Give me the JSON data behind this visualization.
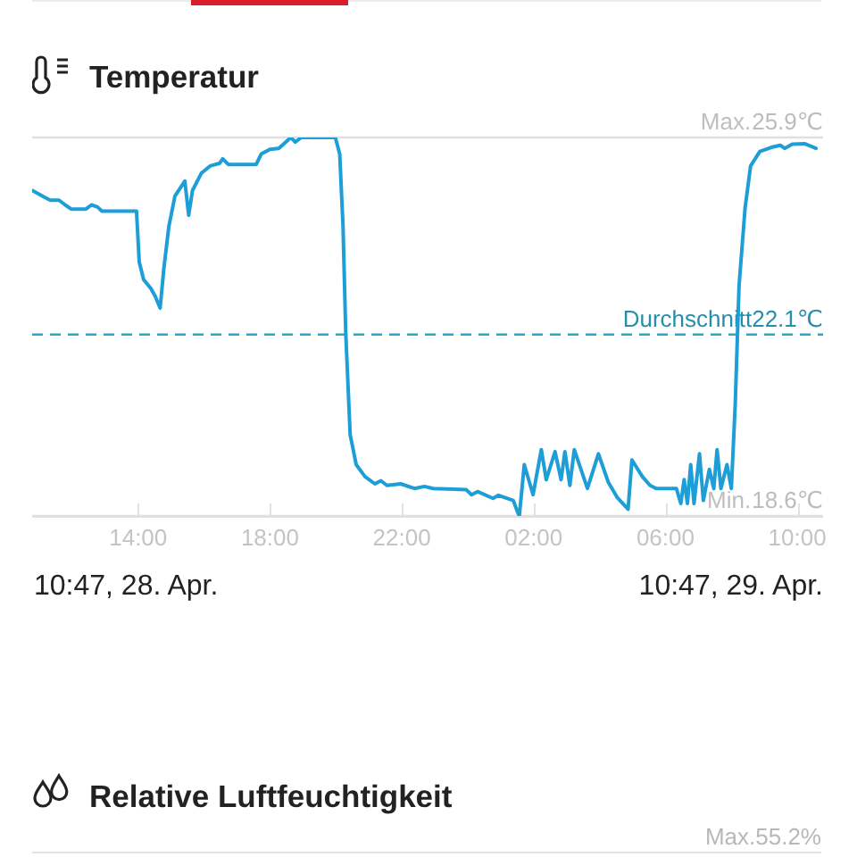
{
  "chart_data": [
    {
      "type": "line",
      "title": "Temperatur",
      "x": [
        "--04-28T10:47",
        "--04-28T11:09",
        "--04-28T11:20",
        "--04-28T11:36",
        "--04-28T11:47",
        "--04-28T11:58",
        "--04-28T12:25",
        "--04-28T12:35",
        "--04-28T12:46",
        "--04-28T12:54",
        "--04-28T13:57",
        "--04-28T14:02",
        "--04-28T14:10",
        "--04-28T14:23",
        "--04-28T14:31",
        "--04-28T14:40",
        "--04-28T14:47",
        "--04-28T14:56",
        "--04-28T15:07",
        "--04-28T15:25",
        "--04-28T15:32",
        "--04-28T15:39",
        "--04-28T15:55",
        "--04-28T16:11",
        "--04-28T16:28",
        "--04-28T16:34",
        "--04-28T16:44",
        "--04-28T17:35",
        "--04-28T17:44",
        "--04-28T18:00",
        "--04-28T18:16",
        "--04-28T18:38",
        "--04-28T18:46",
        "--04-28T18:57",
        "--04-28T19:59",
        "--04-28T20:07",
        "--04-28T20:13",
        "--04-28T20:18",
        "--04-28T20:26",
        "--04-28T20:37",
        "--04-28T20:53",
        "--04-28T21:11",
        "--04-28T21:22",
        "--04-28T21:33",
        "--04-28T21:58",
        "--04-28T22:23",
        "--04-28T22:41",
        "--04-28T22:57",
        "--04-28T23:57",
        "--04-29T00:07",
        "--04-29T00:18",
        "--04-29T00:46",
        "--04-29T00:56",
        "--04-29T01:23",
        "--04-29T01:31",
        "--04-29T01:34",
        "--04-29T01:43",
        "--04-29T01:59",
        "--04-29T02:14",
        "--04-29T02:23",
        "--04-29T02:39",
        "--04-29T02:50",
        "--04-29T02:57",
        "--04-29T03:06",
        "--04-29T03:14",
        "--04-29T03:38",
        "--04-29T03:58",
        "--04-29T04:16",
        "--04-29T04:32",
        "--04-29T04:52",
        "--04-29T04:59",
        "--04-29T05:18",
        "--04-29T05:32",
        "--04-29T05:43",
        "--04-29T06:20",
        "--04-29T06:28",
        "--04-29T06:34",
        "--04-29T06:40",
        "--04-29T06:46",
        "--04-29T06:52",
        "--04-29T07:02",
        "--04-29T07:09",
        "--04-29T07:20",
        "--04-29T07:28",
        "--04-29T07:34",
        "--04-29T07:41",
        "--04-29T07:52",
        "--04-29T08:00",
        "--04-29T08:07",
        "--04-29T08:14",
        "--04-29T08:25",
        "--04-29T08:35",
        "--04-29T08:52",
        "--04-29T09:13",
        "--04-29T09:29",
        "--04-29T09:37",
        "--04-29T09:51",
        "--04-29T10:13",
        "--04-29T10:34"
      ],
      "series": [
        {
          "color": "#1e9ed6",
          "values": [
            24.88,
            24.75,
            24.69,
            24.69,
            24.6,
            24.52,
            24.52,
            24.6,
            24.56,
            24.48,
            24.48,
            23.5,
            23.16,
            22.99,
            22.84,
            22.61,
            23.39,
            24.19,
            24.77,
            25.06,
            24.4,
            24.88,
            25.21,
            25.35,
            25.4,
            25.49,
            25.38,
            25.38,
            25.58,
            25.67,
            25.69,
            25.9,
            25.81,
            25.9,
            25.9,
            25.58,
            24.19,
            22.12,
            20.17,
            19.59,
            19.36,
            19.22,
            19.28,
            19.19,
            19.22,
            19.13,
            19.17,
            19.13,
            19.11,
            19.01,
            19.07,
            18.94,
            19.0,
            18.9,
            18.67,
            18.6,
            19.59,
            19.01,
            19.88,
            19.3,
            19.84,
            19.3,
            19.84,
            19.19,
            19.88,
            19.13,
            19.8,
            19.25,
            18.96,
            18.73,
            19.68,
            19.36,
            19.19,
            19.13,
            19.13,
            18.84,
            19.3,
            18.84,
            19.59,
            18.84,
            19.8,
            18.9,
            19.5,
            19.13,
            19.88,
            19.13,
            19.59,
            19.13,
            20.74,
            23.04,
            24.54,
            25.35,
            25.63,
            25.71,
            25.75,
            25.69,
            25.77,
            25.78,
            25.69
          ]
        }
      ],
      "xlim": [
        "--04-28T10:47",
        "--04-29T10:47"
      ],
      "xticks": [
        {
          "value": "--04-28T14:00",
          "label": "14:00"
        },
        {
          "value": "--04-28T18:00",
          "label": "18:00"
        },
        {
          "value": "--04-28T22:00",
          "label": "22:00"
        },
        {
          "value": "--04-29T02:00",
          "label": "02:00"
        },
        {
          "value": "--04-29T06:00",
          "label": "06:00"
        },
        {
          "value": "--04-29T10:00",
          "label": "10:00"
        }
      ],
      "ylim": [
        18.6,
        25.9
      ],
      "yticks": [
        {
          "value": 18.6,
          "label": "18.6℃"
        },
        {
          "value": 25.9,
          "label": "25.9℃"
        }
      ],
      "marker": "none",
      "ref_lines": [
        {
          "axis": "y",
          "value": 25.9,
          "label": "Max.",
          "color": "#e0e0e0"
        },
        {
          "axis": "y",
          "value": 22.1,
          "label": "Durchschnitt22.1℃",
          "color": "#2aa7cc",
          "line_style": "dashed"
        },
        {
          "axis": "y",
          "value": 18.6,
          "label": "Min.",
          "color": "#e0e0e0"
        }
      ],
      "annotations": [
        "10:47, 28. Apr.",
        "10:47, 29. Apr."
      ]
    },
    {
      "type": "other",
      "title": "Relative Luftfeuchtigkeit",
      "annotations": [
        "Max.55.2%"
      ]
    }
  ]
}
